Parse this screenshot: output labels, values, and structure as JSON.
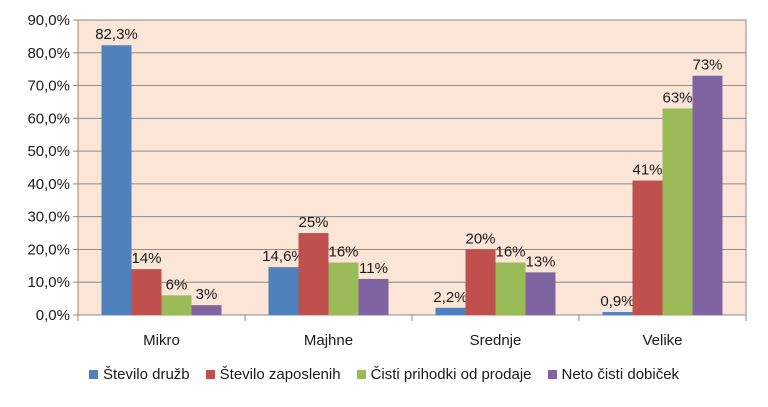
{
  "chart_data": {
    "type": "bar",
    "title": "",
    "xlabel": "",
    "ylabel": "",
    "categories": [
      "Mikro",
      "Majhne",
      "Srednje",
      "Velike"
    ],
    "ylim": [
      0,
      90
    ],
    "yticks": [
      0,
      10,
      20,
      30,
      40,
      50,
      60,
      70,
      80,
      90
    ],
    "ytick_labels": [
      "0,0%",
      "10,0%",
      "20,0%",
      "30,0%",
      "40,0%",
      "50,0%",
      "60,0%",
      "70,0%",
      "80,0%",
      "90,0%"
    ],
    "grid": true,
    "legend_position": "bottom",
    "plot_background": "#fbe5d6",
    "series": [
      {
        "name": "Število družb",
        "color": "#4f81bd",
        "values": [
          82.3,
          14.6,
          2.2,
          0.9
        ],
        "labels": [
          "82,3%",
          "14,6%",
          "2,2%",
          "0,9%"
        ]
      },
      {
        "name": "Število zaposlenih",
        "color": "#c0504d",
        "values": [
          14,
          25,
          20,
          41
        ],
        "labels": [
          "14%",
          "25%",
          "20%",
          "41%"
        ]
      },
      {
        "name": "Čisti prihodki od prodaje",
        "color": "#9bbb59",
        "values": [
          6,
          16,
          16,
          63
        ],
        "labels": [
          "6%",
          "16%",
          "16%",
          "63%"
        ]
      },
      {
        "name": "Neto čisti dobiček",
        "color": "#8064a2",
        "values": [
          3,
          11,
          13,
          73
        ],
        "labels": [
          "3%",
          "11%",
          "13%",
          "73%"
        ]
      }
    ]
  }
}
